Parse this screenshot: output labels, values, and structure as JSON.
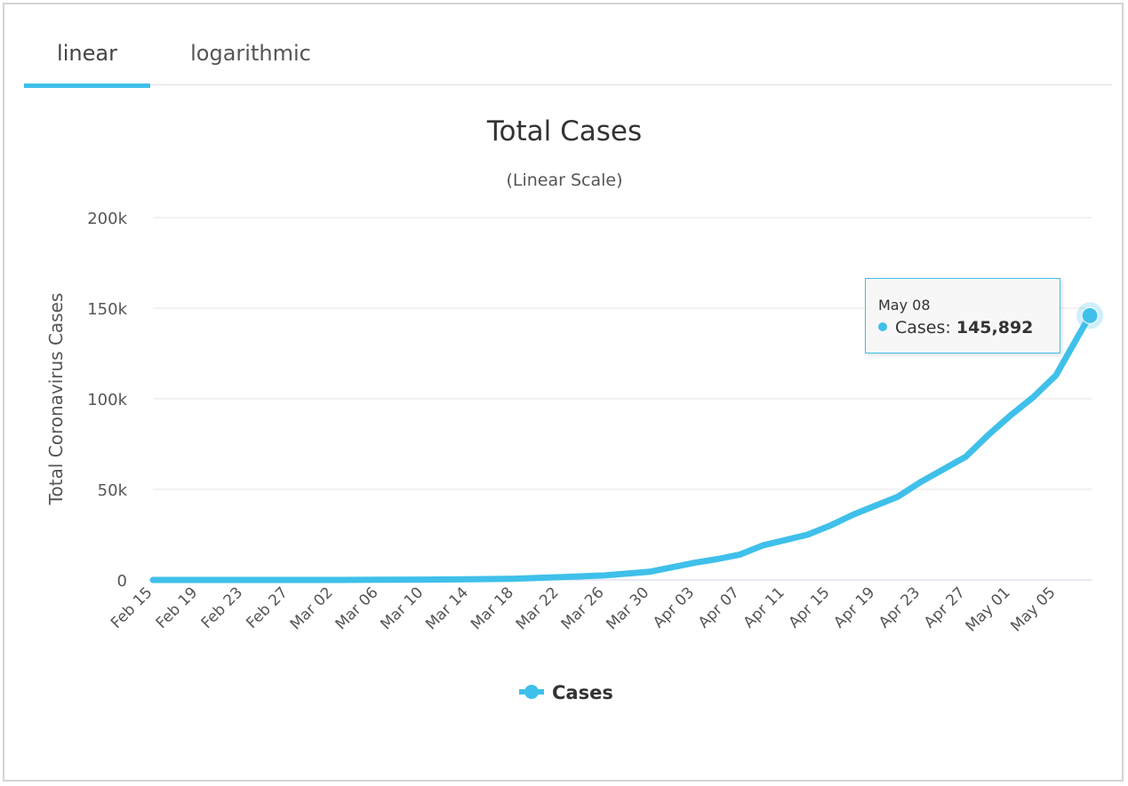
{
  "tabs": [
    {
      "label": "linear",
      "active": true
    },
    {
      "label": "logarithmic",
      "active": false
    }
  ],
  "tooltip": {
    "date": "May 08",
    "series_label": "Cases:",
    "value_text": "145,892"
  },
  "colors": {
    "series": "#3fc0ea",
    "grid": "#e6e6e6",
    "text": "#333333",
    "tab_indicator": "#3fc0ea"
  },
  "chart_data": {
    "type": "line",
    "title": "Total Cases",
    "subtitle": "(Linear Scale)",
    "xlabel": "",
    "ylabel": "Total Coronavirus Cases",
    "ylim": [
      0,
      200000
    ],
    "yticks": [
      0,
      50000,
      100000,
      150000,
      200000
    ],
    "ytick_labels": [
      "0",
      "50k",
      "100k",
      "150k",
      "200k"
    ],
    "xtick_labels": [
      "Feb 15",
      "Feb 19",
      "Feb 23",
      "Feb 27",
      "Mar 02",
      "Mar 06",
      "Mar 10",
      "Mar 14",
      "Mar 18",
      "Mar 22",
      "Mar 26",
      "Mar 30",
      "Apr 03",
      "Apr 07",
      "Apr 11",
      "Apr 15",
      "Apr 19",
      "Apr 23",
      "Apr 27",
      "May 01",
      "May 05"
    ],
    "grid": true,
    "legend": "bottom-center",
    "series": [
      {
        "name": "Cases",
        "color": "#3fc0ea",
        "x": [
          "Feb 15",
          "Feb 19",
          "Feb 23",
          "Feb 27",
          "Mar 02",
          "Mar 06",
          "Mar 10",
          "Mar 14",
          "Mar 18",
          "Mar 22",
          "Mar 26",
          "Mar 30",
          "Apr 01",
          "Apr 03",
          "Apr 05",
          "Apr 07",
          "Apr 09",
          "Apr 11",
          "Apr 13",
          "Apr 15",
          "Apr 17",
          "Apr 19",
          "Apr 21",
          "Apr 23",
          "Apr 25",
          "Apr 27",
          "Apr 29",
          "May 01",
          "May 03",
          "May 05",
          "May 06",
          "May 07",
          "May 08"
        ],
        "values": [
          0,
          0,
          0,
          0,
          0,
          100,
          200,
          400,
          700,
          1500,
          2500,
          4500,
          7000,
          9500,
          11500,
          14000,
          19000,
          22000,
          25000,
          30000,
          36000,
          41000,
          46000,
          54000,
          61000,
          68000,
          80000,
          91000,
          101000,
          113000,
          124000,
          135000,
          145892
        ]
      }
    ]
  }
}
